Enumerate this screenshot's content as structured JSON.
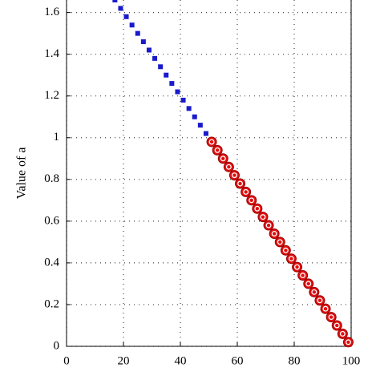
{
  "chart_data": {
    "type": "scatter",
    "ylabel": "Value of a",
    "xlim": [
      0,
      100
    ],
    "ylim": [
      0,
      1.66
    ],
    "xticks": [
      0,
      20,
      40,
      60,
      80,
      100
    ],
    "yticks": [
      0,
      0.2,
      0.4,
      0.6,
      0.8,
      1,
      1.2,
      1.4,
      1.6
    ],
    "grid": true,
    "series": [
      {
        "marker": "square",
        "color": "#1a1acc",
        "x": [
          17,
          19,
          21,
          23,
          25,
          27,
          29,
          31,
          33,
          35,
          37,
          39,
          41,
          43,
          45,
          47,
          49
        ],
        "values": [
          1.66,
          1.62,
          1.58,
          1.54,
          1.5,
          1.46,
          1.42,
          1.38,
          1.34,
          1.3,
          1.26,
          1.22,
          1.18,
          1.14,
          1.1,
          1.06,
          1.02
        ]
      },
      {
        "marker": "circle",
        "color": "#e01010",
        "x": [
          51,
          53,
          55,
          57,
          59,
          61,
          63,
          65,
          67,
          69,
          71,
          73,
          75,
          77,
          79,
          81,
          83,
          85,
          87,
          89,
          91,
          93,
          95,
          97,
          99
        ],
        "values": [
          0.98,
          0.94,
          0.9,
          0.86,
          0.82,
          0.78,
          0.74,
          0.7,
          0.66,
          0.62,
          0.58,
          0.54,
          0.5,
          0.46,
          0.42,
          0.38,
          0.34,
          0.3,
          0.26,
          0.22,
          0.18,
          0.14,
          0.1,
          0.06,
          0.02
        ]
      }
    ]
  }
}
